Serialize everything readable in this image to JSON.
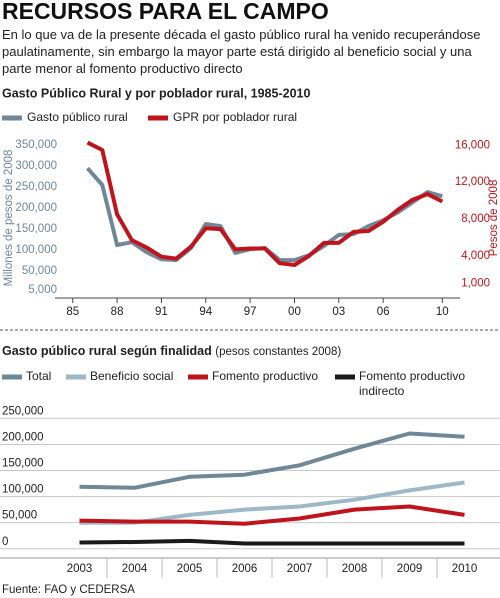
{
  "title": "RECURSOS PARA EL CAMPO",
  "intro": "En lo que va de la presente década el gasto público rural ha venido recuperándose paulatinamente, sin embargo la mayor parte está dirigido al beneficio social y una parte menor al fomento productivo directo",
  "source": "Fuente: FAO y CEDERSA",
  "chart_data": [
    {
      "type": "line",
      "title": "Gasto Público Rural y por poblador rural, 1985-2010",
      "ylabel": "Millones de pesos de 2008",
      "y2label": "Pesos de 2008",
      "x": [
        1986,
        1987,
        1988,
        1989,
        1990,
        1991,
        1992,
        1993,
        1994,
        1995,
        1996,
        1997,
        1998,
        1999,
        2000,
        2001,
        2002,
        2003,
        2004,
        2005,
        2006,
        2007,
        2008,
        2009,
        2010
      ],
      "xlim": [
        1983.8,
        2011.2
      ],
      "xticks": [
        {
          "value": 1985,
          "label": "85"
        },
        {
          "value": 1988,
          "label": "88"
        },
        {
          "value": 1991,
          "label": "91"
        },
        {
          "value": 1994,
          "label": "94"
        },
        {
          "value": 1997,
          "label": "97"
        },
        {
          "value": 2000,
          "label": "00"
        },
        {
          "value": 2003,
          "label": "03"
        },
        {
          "value": 2006,
          "label": "06"
        },
        {
          "value": 2010,
          "label": "10"
        }
      ],
      "ylim": [
        -19000,
        367000
      ],
      "yticks": [
        {
          "value": 5000,
          "label": "5,000"
        },
        {
          "value": 50000,
          "label": "50,000"
        },
        {
          "value": 100000,
          "label": "100,000"
        },
        {
          "value": 150000,
          "label": "150,000"
        },
        {
          "value": 200000,
          "label": "200,000"
        },
        {
          "value": 250000,
          "label": "250,000"
        },
        {
          "value": 300000,
          "label": "300,000"
        },
        {
          "value": 350000,
          "label": "350,000"
        }
      ],
      "y2lim": [
        -800,
        16800
      ],
      "y2ticks": [
        {
          "value": 1000,
          "label": "1,000"
        },
        {
          "value": 4000,
          "label": "4,000"
        },
        {
          "value": 8000,
          "label": "8,000"
        },
        {
          "value": 12000,
          "label": "12,000"
        },
        {
          "value": 16000,
          "label": "16,000"
        }
      ],
      "series": [
        {
          "name": "Gasto público rural",
          "color": "#6f8797",
          "values": [
            295000,
            255000,
            112000,
            119000,
            95000,
            78000,
            76000,
            105000,
            162000,
            157000,
            93000,
            102000,
            105000,
            76000,
            76000,
            88000,
            110000,
            136000,
            138000,
            157000,
            171000,
            190000,
            214000,
            238000,
            228000
          ]
        },
        {
          "name": "GPR por poblador rural",
          "color": "#c0141c",
          "axis": "y2",
          "values": [
            16300,
            15500,
            8500,
            5700,
            4900,
            3900,
            3700,
            5000,
            7000,
            6900,
            4700,
            4800,
            4800,
            3200,
            3000,
            4000,
            5400,
            5400,
            6600,
            6700,
            7700,
            9000,
            10100,
            10700,
            9900
          ]
        }
      ]
    },
    {
      "type": "line",
      "title": "Gasto público rural según finalidad",
      "subtitle": "(pesos constantes 2008)",
      "categories": [
        "2003",
        "2004",
        "2005",
        "2006",
        "2007",
        "2008",
        "2009",
        "2010"
      ],
      "ylim": [
        -12000,
        270000
      ],
      "yticks": [
        0,
        {
          "value": 50000,
          "label": "50,000"
        },
        {
          "value": 100000,
          "label": "100,000"
        },
        {
          "value": 150000,
          "label": "150,000"
        },
        {
          "value": 200000,
          "label": "200,000"
        },
        {
          "value": 250000,
          "label": "250,000"
        }
      ],
      "grid": true,
      "series": [
        {
          "name": "Total",
          "color": "#6f8797",
          "values": [
            119000,
            117000,
            138000,
            142000,
            160000,
            192000,
            221000,
            215000
          ]
        },
        {
          "name": "Beneficio social",
          "color": "#9fb8c8",
          "values": [
            50000,
            50000,
            65000,
            75000,
            81000,
            94000,
            112000,
            127000
          ]
        },
        {
          "name": "Fomento productivo",
          "color": "#c0141c",
          "values": [
            54000,
            52000,
            52000,
            48000,
            58000,
            75000,
            81000,
            65000
          ]
        },
        {
          "name": "Fomento productivo indirecto",
          "color": "#1a1a1a",
          "values": [
            12000,
            13000,
            15000,
            10000,
            10000,
            10000,
            10000,
            10000
          ]
        }
      ]
    }
  ]
}
